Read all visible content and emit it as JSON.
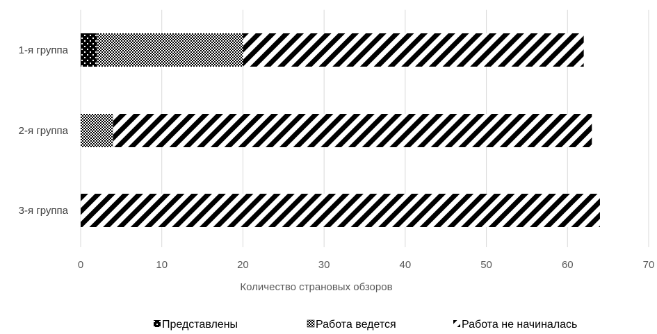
{
  "chart_data": {
    "type": "bar",
    "orientation": "horizontal",
    "stacked": true,
    "categories": [
      "1-я группа",
      "2-я группа",
      "3-я группа"
    ],
    "series": [
      {
        "name": "Представлены",
        "values": [
          2,
          0,
          0
        ],
        "pattern": "dots-on-black"
      },
      {
        "name": "Работа ведется",
        "values": [
          18,
          4,
          0
        ],
        "pattern": "checkered"
      },
      {
        "name": "Работа не начиналась",
        "values": [
          42,
          59,
          64
        ],
        "pattern": "diagonal-stripes"
      }
    ],
    "xlabel": "Количество страновых обзоров",
    "xlim": [
      0,
      70
    ],
    "xticks": [
      0,
      10,
      20,
      30,
      40,
      50,
      60,
      70
    ],
    "grid": "vertical",
    "legend_position": "bottom",
    "colors": {
      "fill": "#000000",
      "background": "#ffffff",
      "grid": "#d9d9d9"
    }
  }
}
